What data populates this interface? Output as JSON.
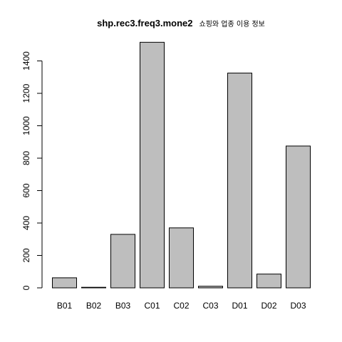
{
  "chart_data": {
    "type": "bar",
    "title": "shp.rec3.freq3.mone2",
    "subtitle": "쇼핑와 업종 이용 정보",
    "xlabel": "",
    "ylabel": "",
    "categories": [
      "B01",
      "B02",
      "B03",
      "C01",
      "C02",
      "C03",
      "D01",
      "D02",
      "D03"
    ],
    "values": [
      62,
      0,
      330,
      1515,
      370,
      10,
      1325,
      85,
      875
    ],
    "ylim": [
      0,
      1515
    ],
    "yticks": [
      0,
      200,
      400,
      600,
      800,
      1000,
      1200,
      1400
    ],
    "bar_color": "#bebebe",
    "bar_border": "#000000",
    "grid": false,
    "legend": "none"
  }
}
